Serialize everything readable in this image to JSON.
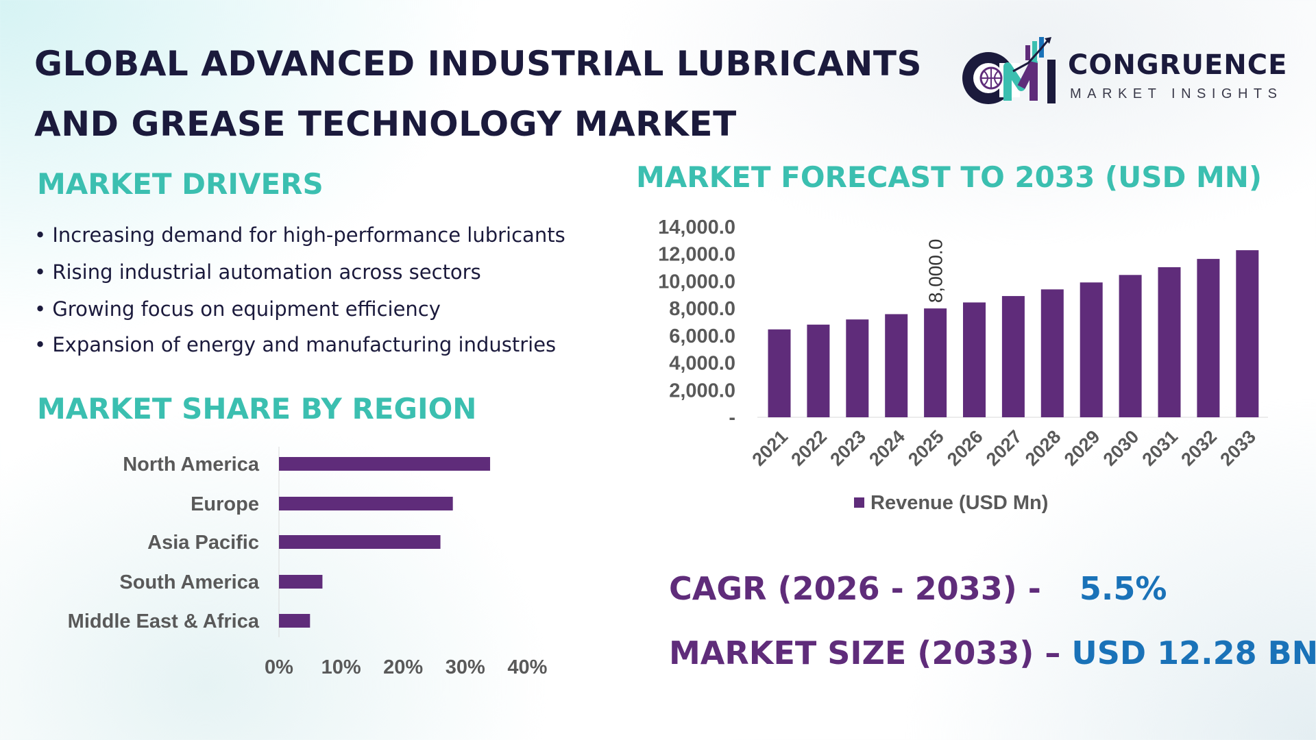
{
  "header": {
    "title_line1": "GLOBAL ADVANCED INDUSTRIAL LUBRICANTS",
    "title_line2": "AND GREASE TECHNOLOGY MARKET"
  },
  "logo": {
    "name": "CONGRUENCE",
    "tagline": "MARKET INSIGHTS"
  },
  "drivers": {
    "heading": "MARKET DRIVERS",
    "items": [
      "Increasing demand for high-performance lubricants",
      "Rising industrial automation across sectors",
      "Growing focus on equipment efficiency",
      "Expansion of energy and manufacturing industries"
    ]
  },
  "region": {
    "heading": "MARKET SHARE BY REGION"
  },
  "forecast": {
    "heading": "MARKET FORECAST TO 2033 (USD MN)"
  },
  "kpis": {
    "cagr_label": "CAGR (2026 - 2033) -",
    "cagr_value": "5.5%",
    "size_label": "MARKET SIZE (2033) –",
    "size_value": "USD 12.28 BN"
  },
  "colors": {
    "bar": "#5f2c7a",
    "teal": "#3bbfb0",
    "blue": "#1a72b8",
    "navy": "#1b1a3c",
    "axis_text": "#595959"
  },
  "chart_data": [
    {
      "type": "bar",
      "orientation": "vertical",
      "categories": [
        "2021",
        "2022",
        "2023",
        "2024",
        "2025",
        "2026",
        "2027",
        "2028",
        "2029",
        "2030",
        "2031",
        "2032",
        "2033"
      ],
      "series": [
        {
          "name": "Revenue (USD Mn)",
          "values": [
            6460,
            6810,
            7190,
            7580,
            8000,
            8440,
            8910,
            9400,
            9910,
            10460,
            11030,
            11640,
            12280
          ]
        }
      ],
      "data_labels": {
        "2025": "8,000.0"
      },
      "y_ticks": [
        "-",
        "2,000.0",
        "4,000.0",
        "6,000.0",
        "8,000.0",
        "10,000.0",
        "12,000.0",
        "14,000.0"
      ],
      "ylim": [
        0,
        14000
      ],
      "legend": "bottom",
      "grid": false
    },
    {
      "type": "bar",
      "orientation": "horizontal",
      "categories": [
        "North America",
        "Europe",
        "Asia Pacific",
        "South America",
        "Middle East & Africa"
      ],
      "values": [
        34,
        28,
        26,
        7,
        5
      ],
      "x_ticks": [
        "0%",
        "10%",
        "20%",
        "30%",
        "40%"
      ],
      "xlim": [
        0,
        40
      ],
      "grid": false
    }
  ]
}
